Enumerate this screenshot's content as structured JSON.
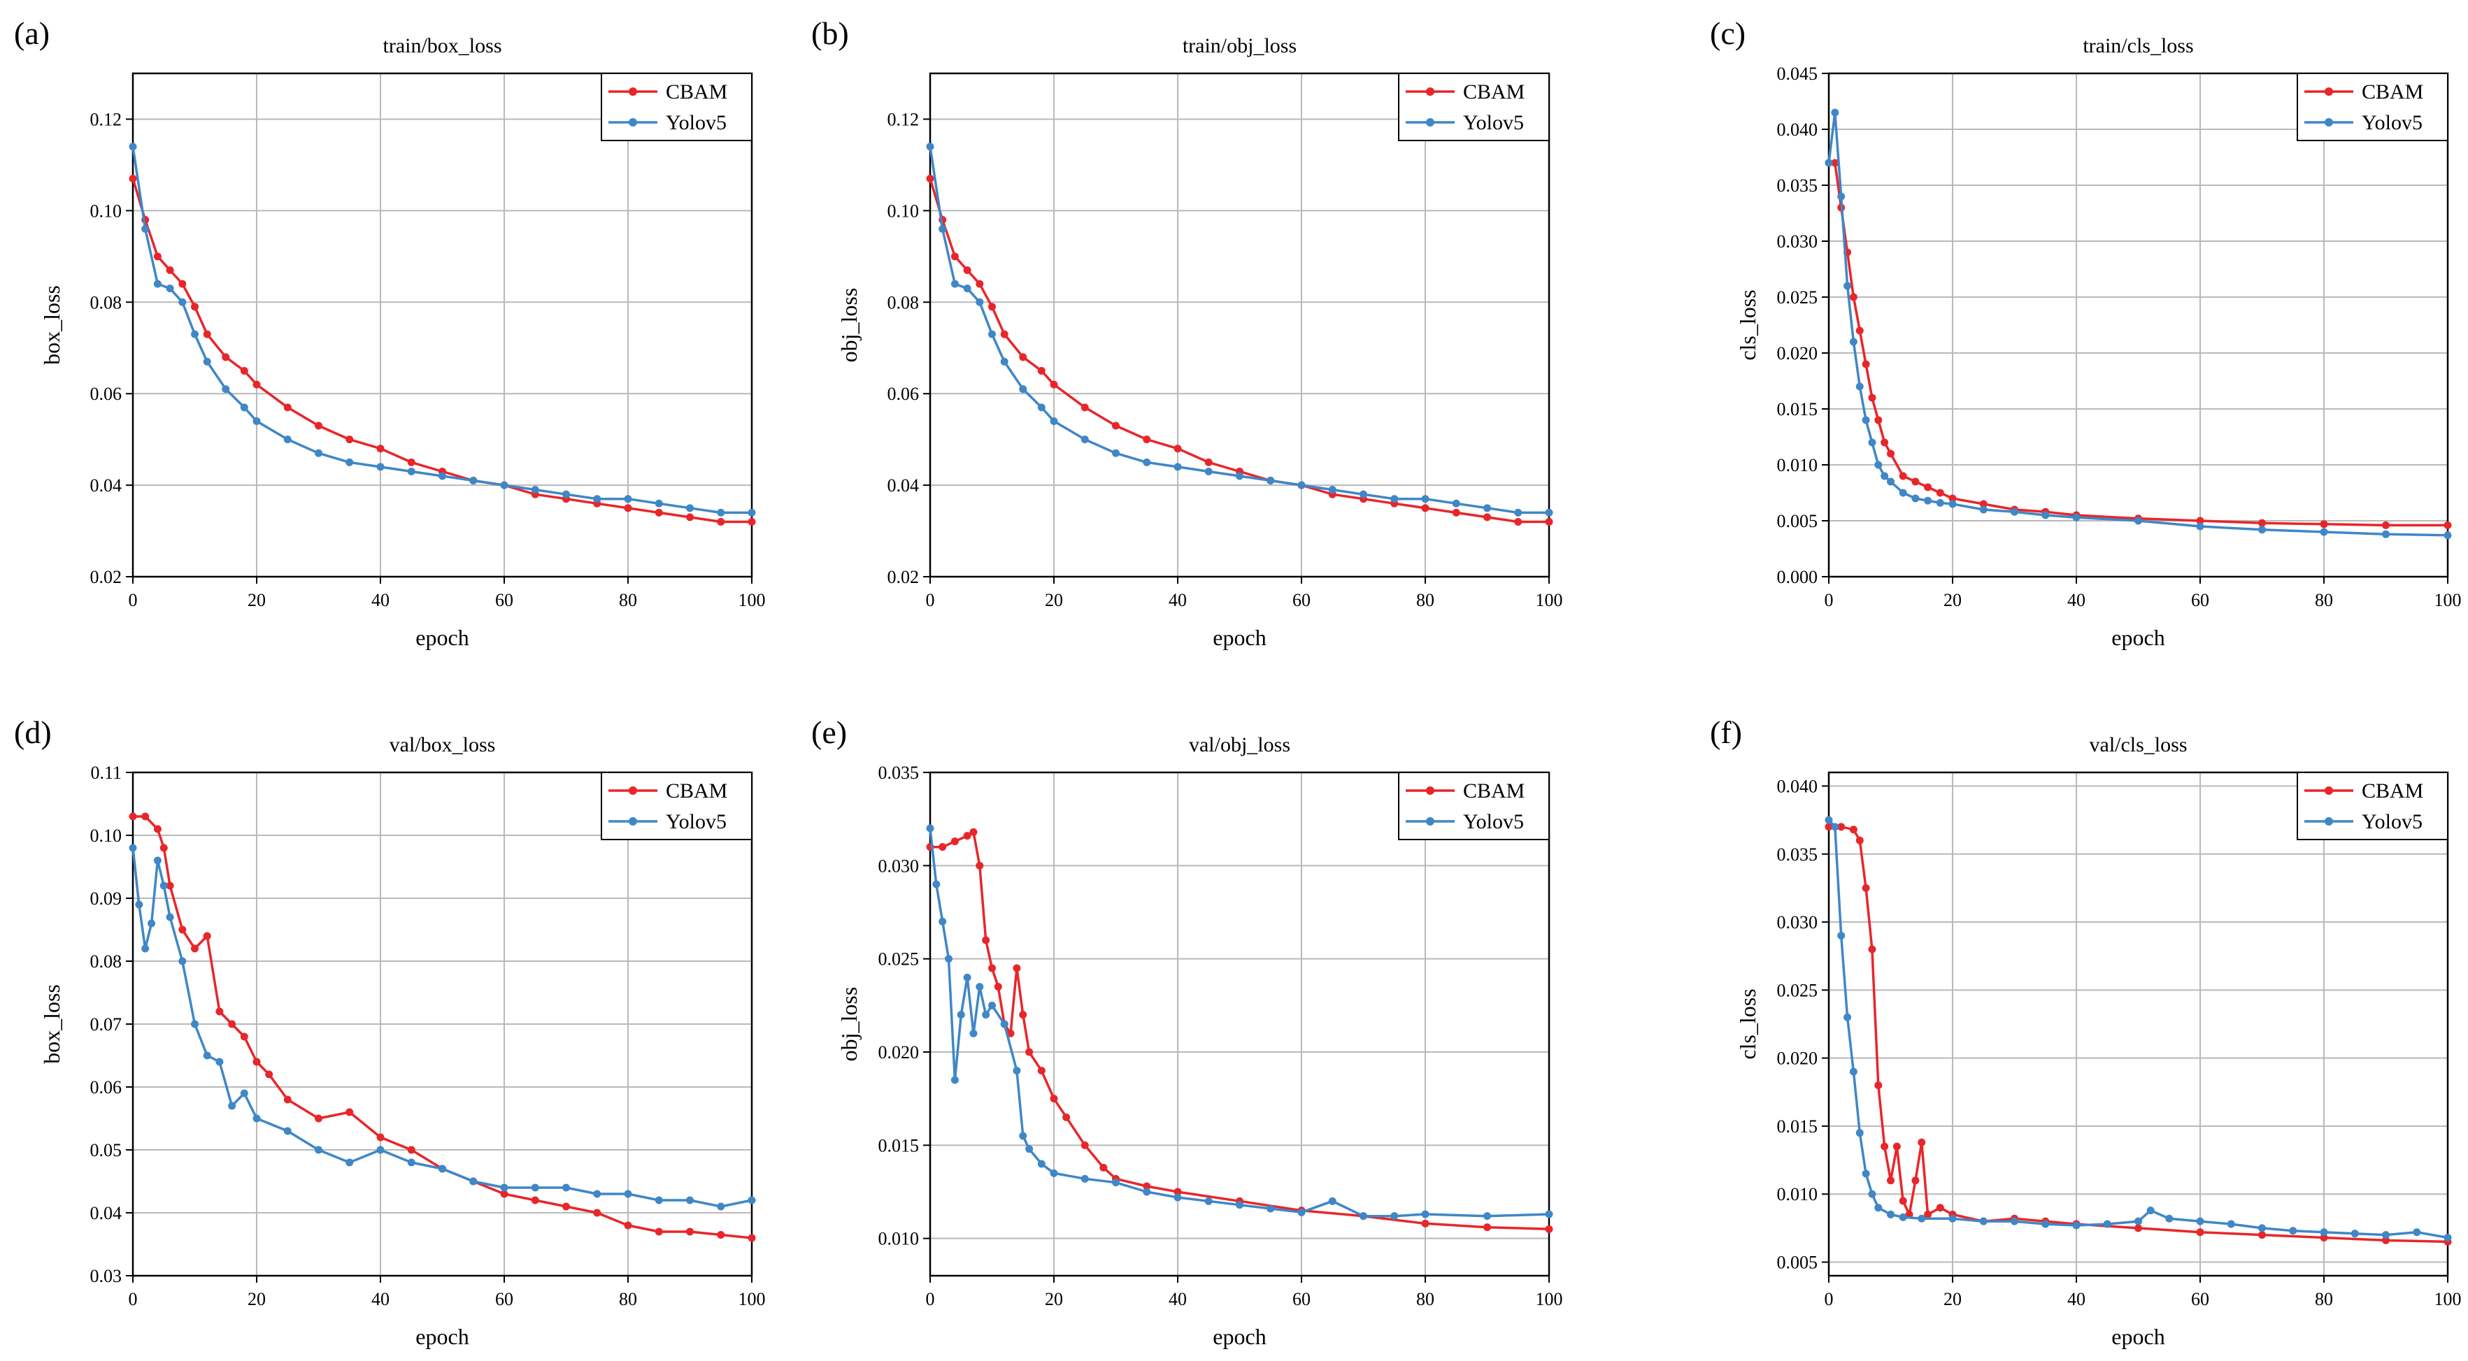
{
  "chart_data": [
    {
      "type": "line",
      "panel": "(a)",
      "title": "train/box_loss",
      "xlabel": "epoch",
      "ylabel": "box_loss",
      "xlim": [
        0,
        100
      ],
      "ylim": [
        0.02,
        0.13
      ],
      "xticks": [
        0,
        20,
        40,
        60,
        80,
        100
      ],
      "xtick_labels": [
        "0",
        "20",
        "40",
        "60",
        "80",
        "100"
      ],
      "yticks": [
        0.02,
        0.04,
        0.06,
        0.08,
        0.1,
        0.12
      ],
      "ytick_labels": [
        "0.02",
        "0.04",
        "0.06",
        "0.08",
        "0.10",
        "0.12"
      ],
      "legend": "top-right",
      "series": [
        {
          "name": "CBAM",
          "color": "#e8262a",
          "epochs": [
            0,
            2,
            4,
            6,
            8,
            10,
            12,
            15,
            18,
            20,
            25,
            30,
            35,
            40,
            45,
            50,
            55,
            60,
            65,
            70,
            75,
            80,
            85,
            90,
            95,
            100
          ],
          "values": [
            0.107,
            0.098,
            0.09,
            0.087,
            0.084,
            0.079,
            0.073,
            0.068,
            0.065,
            0.062,
            0.057,
            0.053,
            0.05,
            0.048,
            0.045,
            0.043,
            0.041,
            0.04,
            0.038,
            0.037,
            0.036,
            0.035,
            0.034,
            0.033,
            0.032,
            0.032
          ]
        },
        {
          "name": "Yolov5",
          "color": "#3f87c7",
          "epochs": [
            0,
            2,
            4,
            6,
            8,
            10,
            12,
            15,
            18,
            20,
            25,
            30,
            35,
            40,
            45,
            50,
            55,
            60,
            65,
            70,
            75,
            80,
            85,
            90,
            95,
            100
          ],
          "values": [
            0.114,
            0.096,
            0.084,
            0.083,
            0.08,
            0.073,
            0.067,
            0.061,
            0.057,
            0.054,
            0.05,
            0.047,
            0.045,
            0.044,
            0.043,
            0.042,
            0.041,
            0.04,
            0.039,
            0.038,
            0.037,
            0.037,
            0.036,
            0.035,
            0.034,
            0.034
          ]
        }
      ]
    },
    {
      "type": "line",
      "panel": "(b)",
      "title": "train/obj_loss",
      "xlabel": "epoch",
      "ylabel": "obj_loss",
      "xlim": [
        0,
        100
      ],
      "ylim": [
        0.02,
        0.13
      ],
      "xticks": [
        0,
        20,
        40,
        60,
        80,
        100
      ],
      "xtick_labels": [
        "0",
        "20",
        "40",
        "60",
        "80",
        "100"
      ],
      "yticks": [
        0.02,
        0.04,
        0.06,
        0.08,
        0.1,
        0.12
      ],
      "ytick_labels": [
        "0.02",
        "0.04",
        "0.06",
        "0.08",
        "0.10",
        "0.12"
      ],
      "legend": "top-right",
      "series": [
        {
          "name": "CBAM",
          "color": "#e8262a",
          "epochs": [
            0,
            2,
            4,
            6,
            8,
            10,
            12,
            15,
            18,
            20,
            25,
            30,
            35,
            40,
            45,
            50,
            55,
            60,
            65,
            70,
            75,
            80,
            85,
            90,
            95,
            100
          ],
          "values": [
            0.107,
            0.098,
            0.09,
            0.087,
            0.084,
            0.079,
            0.073,
            0.068,
            0.065,
            0.062,
            0.057,
            0.053,
            0.05,
            0.048,
            0.045,
            0.043,
            0.041,
            0.04,
            0.038,
            0.037,
            0.036,
            0.035,
            0.034,
            0.033,
            0.032,
            0.032
          ]
        },
        {
          "name": "Yolov5",
          "color": "#3f87c7",
          "epochs": [
            0,
            2,
            4,
            6,
            8,
            10,
            12,
            15,
            18,
            20,
            25,
            30,
            35,
            40,
            45,
            50,
            55,
            60,
            65,
            70,
            75,
            80,
            85,
            90,
            95,
            100
          ],
          "values": [
            0.114,
            0.096,
            0.084,
            0.083,
            0.08,
            0.073,
            0.067,
            0.061,
            0.057,
            0.054,
            0.05,
            0.047,
            0.045,
            0.044,
            0.043,
            0.042,
            0.041,
            0.04,
            0.039,
            0.038,
            0.037,
            0.037,
            0.036,
            0.035,
            0.034,
            0.034
          ]
        }
      ]
    },
    {
      "type": "line",
      "panel": "(c)",
      "title": "train/cls_loss",
      "xlabel": "epoch",
      "ylabel": "cls_loss",
      "xlim": [
        0,
        100
      ],
      "ylim": [
        0.0,
        0.045
      ],
      "xticks": [
        0,
        20,
        40,
        60,
        80,
        100
      ],
      "xtick_labels": [
        "0",
        "20",
        "40",
        "60",
        "80",
        "100"
      ],
      "yticks": [
        0.0,
        0.005,
        0.01,
        0.015,
        0.02,
        0.025,
        0.03,
        0.035,
        0.04,
        0.045
      ],
      "ytick_labels": [
        "0.000",
        "0.005",
        "0.010",
        "0.015",
        "0.020",
        "0.025",
        "0.030",
        "0.035",
        "0.040",
        "0.045"
      ],
      "legend": "top-right",
      "series": [
        {
          "name": "CBAM",
          "color": "#e8262a",
          "epochs": [
            0,
            1,
            2,
            3,
            4,
            5,
            6,
            7,
            8,
            9,
            10,
            12,
            14,
            16,
            18,
            20,
            25,
            30,
            35,
            40,
            50,
            60,
            70,
            80,
            90,
            100
          ],
          "values": [
            0.037,
            0.037,
            0.033,
            0.029,
            0.025,
            0.022,
            0.019,
            0.016,
            0.014,
            0.012,
            0.011,
            0.009,
            0.0085,
            0.008,
            0.0075,
            0.007,
            0.0065,
            0.006,
            0.0058,
            0.0055,
            0.0052,
            0.005,
            0.0048,
            0.0047,
            0.0046,
            0.0046
          ]
        },
        {
          "name": "Yolov5",
          "color": "#3f87c7",
          "epochs": [
            0,
            1,
            2,
            3,
            4,
            5,
            6,
            7,
            8,
            9,
            10,
            12,
            14,
            16,
            18,
            20,
            25,
            30,
            35,
            40,
            50,
            60,
            70,
            80,
            90,
            100
          ],
          "values": [
            0.037,
            0.0415,
            0.034,
            0.026,
            0.021,
            0.017,
            0.014,
            0.012,
            0.01,
            0.009,
            0.0085,
            0.0075,
            0.007,
            0.0068,
            0.0066,
            0.0065,
            0.006,
            0.0058,
            0.0055,
            0.0053,
            0.005,
            0.0045,
            0.0042,
            0.004,
            0.0038,
            0.0037
          ]
        }
      ]
    },
    {
      "type": "line",
      "panel": "(d)",
      "title": "val/box_loss",
      "xlabel": "epoch",
      "ylabel": "box_loss",
      "xlim": [
        0,
        100
      ],
      "ylim": [
        0.03,
        0.11
      ],
      "xticks": [
        0,
        20,
        40,
        60,
        80,
        100
      ],
      "xtick_labels": [
        "0",
        "20",
        "40",
        "60",
        "80",
        "100"
      ],
      "yticks": [
        0.03,
        0.04,
        0.05,
        0.06,
        0.07,
        0.08,
        0.09,
        0.1,
        0.11
      ],
      "ytick_labels": [
        "0.03",
        "0.04",
        "0.05",
        "0.06",
        "0.07",
        "0.08",
        "0.09",
        "0.10",
        "0.11"
      ],
      "legend": "top-right",
      "series": [
        {
          "name": "CBAM",
          "color": "#e8262a",
          "epochs": [
            0,
            2,
            4,
            5,
            6,
            8,
            10,
            12,
            14,
            16,
            18,
            20,
            22,
            25,
            30,
            35,
            40,
            45,
            50,
            55,
            60,
            65,
            70,
            75,
            80,
            85,
            90,
            95,
            100
          ],
          "values": [
            0.103,
            0.103,
            0.101,
            0.098,
            0.092,
            0.085,
            0.082,
            0.084,
            0.072,
            0.07,
            0.068,
            0.064,
            0.062,
            0.058,
            0.055,
            0.056,
            0.052,
            0.05,
            0.047,
            0.045,
            0.043,
            0.042,
            0.041,
            0.04,
            0.038,
            0.037,
            0.037,
            0.0365,
            0.036
          ]
        },
        {
          "name": "Yolov5",
          "color": "#3f87c7",
          "epochs": [
            0,
            1,
            2,
            3,
            4,
            5,
            6,
            8,
            10,
            12,
            14,
            16,
            18,
            20,
            25,
            30,
            35,
            40,
            45,
            50,
            55,
            60,
            65,
            70,
            75,
            80,
            85,
            90,
            95,
            100
          ],
          "values": [
            0.098,
            0.089,
            0.082,
            0.086,
            0.096,
            0.092,
            0.087,
            0.08,
            0.07,
            0.065,
            0.064,
            0.057,
            0.059,
            0.055,
            0.053,
            0.05,
            0.048,
            0.05,
            0.048,
            0.047,
            0.045,
            0.044,
            0.044,
            0.044,
            0.043,
            0.043,
            0.042,
            0.042,
            0.041,
            0.042
          ]
        }
      ]
    },
    {
      "type": "line",
      "panel": "(e)",
      "title": "val/obj_loss",
      "xlabel": "epoch",
      "ylabel": "obj_loss",
      "xlim": [
        0,
        100
      ],
      "ylim": [
        0.008,
        0.035
      ],
      "xticks": [
        0,
        20,
        40,
        60,
        80,
        100
      ],
      "xtick_labels": [
        "0",
        "20",
        "40",
        "60",
        "80",
        "100"
      ],
      "yticks": [
        0.01,
        0.015,
        0.02,
        0.025,
        0.03,
        0.035
      ],
      "ytick_labels": [
        "0.010",
        "0.015",
        "0.020",
        "0.025",
        "0.030",
        "0.035"
      ],
      "legend": "top-right",
      "series": [
        {
          "name": "CBAM",
          "color": "#e8262a",
          "epochs": [
            0,
            2,
            4,
            6,
            7,
            8,
            9,
            10,
            11,
            12,
            13,
            14,
            15,
            16,
            18,
            20,
            22,
            25,
            28,
            30,
            35,
            40,
            50,
            60,
            70,
            80,
            90,
            100
          ],
          "values": [
            0.031,
            0.031,
            0.0313,
            0.0316,
            0.0318,
            0.03,
            0.026,
            0.0245,
            0.0235,
            0.0215,
            0.021,
            0.0245,
            0.022,
            0.02,
            0.019,
            0.0175,
            0.0165,
            0.015,
            0.0138,
            0.0132,
            0.0128,
            0.0125,
            0.012,
            0.0115,
            0.0112,
            0.0108,
            0.0106,
            0.0105
          ]
        },
        {
          "name": "Yolov5",
          "color": "#3f87c7",
          "epochs": [
            0,
            1,
            2,
            3,
            4,
            5,
            6,
            7,
            8,
            9,
            10,
            12,
            14,
            15,
            16,
            18,
            20,
            25,
            30,
            35,
            40,
            45,
            50,
            55,
            60,
            65,
            70,
            75,
            80,
            90,
            100
          ],
          "values": [
            0.032,
            0.029,
            0.027,
            0.025,
            0.0185,
            0.022,
            0.024,
            0.021,
            0.0235,
            0.022,
            0.0225,
            0.0215,
            0.019,
            0.0155,
            0.0148,
            0.014,
            0.0135,
            0.0132,
            0.013,
            0.0125,
            0.0122,
            0.012,
            0.0118,
            0.0116,
            0.0114,
            0.012,
            0.0112,
            0.0112,
            0.0113,
            0.0112,
            0.0113
          ]
        }
      ]
    },
    {
      "type": "line",
      "panel": "(f)",
      "title": "val/cls_loss",
      "xlabel": "epoch",
      "ylabel": "cls_loss",
      "xlim": [
        0,
        100
      ],
      "ylim": [
        0.004,
        0.041
      ],
      "xticks": [
        0,
        20,
        40,
        60,
        80,
        100
      ],
      "xtick_labels": [
        "0",
        "20",
        "40",
        "60",
        "80",
        "100"
      ],
      "yticks": [
        0.005,
        0.01,
        0.015,
        0.02,
        0.025,
        0.03,
        0.035,
        0.04
      ],
      "ytick_labels": [
        "0.005",
        "0.010",
        "0.015",
        "0.020",
        "0.025",
        "0.030",
        "0.035",
        "0.040"
      ],
      "legend": "top-right",
      "series": [
        {
          "name": "CBAM",
          "color": "#e8262a",
          "epochs": [
            0,
            2,
            4,
            5,
            6,
            7,
            8,
            9,
            10,
            11,
            12,
            13,
            14,
            15,
            16,
            18,
            20,
            25,
            30,
            35,
            40,
            50,
            60,
            70,
            80,
            90,
            100
          ],
          "values": [
            0.037,
            0.037,
            0.0368,
            0.036,
            0.0325,
            0.028,
            0.018,
            0.0135,
            0.011,
            0.0135,
            0.0095,
            0.0085,
            0.011,
            0.0138,
            0.0085,
            0.009,
            0.0085,
            0.008,
            0.0082,
            0.008,
            0.0078,
            0.0075,
            0.0072,
            0.007,
            0.0068,
            0.0066,
            0.0065
          ]
        },
        {
          "name": "Yolov5",
          "color": "#3f87c7",
          "epochs": [
            0,
            1,
            2,
            3,
            4,
            5,
            6,
            7,
            8,
            10,
            12,
            15,
            20,
            25,
            30,
            35,
            40,
            45,
            50,
            52,
            55,
            60,
            65,
            70,
            75,
            80,
            85,
            90,
            95,
            100
          ],
          "values": [
            0.0375,
            0.037,
            0.029,
            0.023,
            0.019,
            0.0145,
            0.0115,
            0.01,
            0.009,
            0.0085,
            0.0083,
            0.0082,
            0.0082,
            0.008,
            0.008,
            0.0078,
            0.0077,
            0.0078,
            0.008,
            0.0088,
            0.0082,
            0.008,
            0.0078,
            0.0075,
            0.0073,
            0.0072,
            0.0071,
            0.007,
            0.0072,
            0.0068
          ]
        }
      ]
    }
  ]
}
